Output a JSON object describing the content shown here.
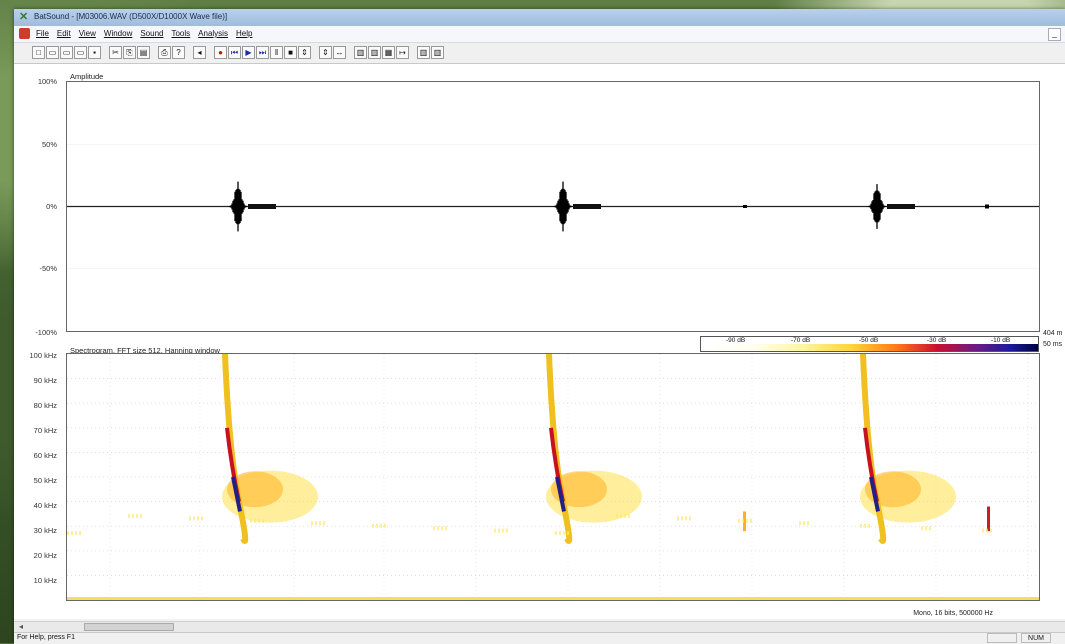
{
  "window": {
    "title": "BatSound - [M03006.WAV (D500X/D1000X Wave file)]"
  },
  "menu": {
    "items": [
      "File",
      "Edit",
      "View",
      "Window",
      "Sound",
      "Tools",
      "Analysis",
      "Help"
    ],
    "mdi_minimize": "_"
  },
  "toolbar": {
    "icons": [
      "new-icon",
      "open-icon",
      "open2-icon",
      "open3-icon",
      "save-icon",
      "cut-icon",
      "copy-icon",
      "paste-icon",
      "print-icon",
      "help-icon",
      "playback-icon",
      "record-icon",
      "rewind-icon",
      "play-icon",
      "fast-forward-icon",
      "pause-icon",
      "stop-icon",
      "zoom-in-icon",
      "zoom-out-icon",
      "zoom-range-icon",
      "spectrogram-icon",
      "power-spectrum-icon",
      "pitch-icon",
      "play-spec-icon",
      "spec-2-icon",
      "spec-3-icon"
    ]
  },
  "amplitude_panel": {
    "label": "Amplitude",
    "y_ticks": [
      "100%",
      "50%",
      "0%",
      "-50%",
      "-100%"
    ]
  },
  "spectrogram_panel": {
    "label": "Spectrogram, FFT size 512, Hanning window",
    "y_ticks": [
      "100 kHz",
      "90 kHz",
      "80 kHz",
      "70 kHz",
      "60 kHz",
      "50 kHz",
      "40 kHz",
      "30 kHz",
      "20 kHz",
      "10 kHz"
    ]
  },
  "colorbar": {
    "ticks": [
      "-90 dB",
      "-70 dB",
      "-50 dB",
      "-30 dB",
      "-10 dB"
    ]
  },
  "right_labels": {
    "duration": "404 m",
    "scale": "50 ms"
  },
  "footer": {
    "format": "Mono, 16 bits, 500000 Hz"
  },
  "status": {
    "message": "For Help, press F1",
    "num": "NUM"
  },
  "chart_data": {
    "type": "waveform+spectrogram",
    "amplitude": {
      "ylim": [
        "-100%",
        "100%"
      ],
      "pulses": [
        {
          "index": 1,
          "peak_amplitude_percent": 20
        },
        {
          "index": 2,
          "peak_amplitude_percent": 20
        },
        {
          "index": 3,
          "peak_amplitude_percent": 18
        }
      ]
    },
    "spectrogram": {
      "ylim_khz": [
        0,
        100
      ],
      "calls": [
        {
          "index": 1,
          "start_khz": 100,
          "end_khz": 25,
          "peak_energy_khz": 40
        },
        {
          "index": 2,
          "start_khz": 100,
          "end_khz": 25,
          "peak_energy_khz": 40
        },
        {
          "index": 3,
          "start_khz": 100,
          "end_khz": 25,
          "peak_energy_khz": 40
        }
      ],
      "colorbar_db": [
        -90,
        -70,
        -50,
        -30,
        -10
      ]
    }
  }
}
